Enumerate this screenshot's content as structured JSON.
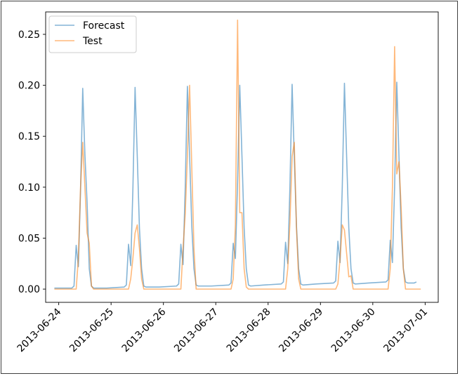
{
  "chart_data": {
    "type": "line",
    "xlabel": "",
    "ylabel": "",
    "title": "",
    "xlim": [
      "2013-06-23T18:00",
      "2013-07-01T06:00"
    ],
    "ylim": [
      -0.013,
      0.272
    ],
    "x_ticks": [
      "2013-06-24",
      "2013-06-25",
      "2013-06-26",
      "2013-06-27",
      "2013-06-28",
      "2013-06-29",
      "2013-06-30",
      "2013-07-01"
    ],
    "y_ticks": [
      "0.00",
      "0.05",
      "0.10",
      "0.15",
      "0.20",
      "0.25"
    ],
    "y_tick_values": [
      0,
      0.05,
      0.1,
      0.15,
      0.2,
      0.25
    ],
    "legend": {
      "placement": "top-left"
    },
    "grid": false,
    "series": [
      {
        "name": "Forecast",
        "color": "#1f77b4",
        "points": [
          [
            "2013-06-23T22:00",
            0.001
          ],
          [
            "2013-06-24T06:00",
            0.001
          ],
          [
            "2013-06-24T07:00",
            0.003
          ],
          [
            "2013-06-24T08:00",
            0.043
          ],
          [
            "2013-06-24T09:00",
            0.022
          ],
          [
            "2013-06-24T10:00",
            0.096
          ],
          [
            "2013-06-24T11:00",
            0.197
          ],
          [
            "2013-06-24T12:00",
            0.132
          ],
          [
            "2013-06-24T13:00",
            0.085
          ],
          [
            "2013-06-24T14:00",
            0.02
          ],
          [
            "2013-06-24T15:00",
            0.003
          ],
          [
            "2013-06-24T16:00",
            0.001
          ],
          [
            "2013-06-24T22:00",
            0.001
          ],
          [
            "2013-06-25T06:00",
            0.002
          ],
          [
            "2013-06-25T07:00",
            0.004
          ],
          [
            "2013-06-25T08:00",
            0.044
          ],
          [
            "2013-06-25T09:00",
            0.023
          ],
          [
            "2013-06-25T10:00",
            0.098
          ],
          [
            "2013-06-25T11:00",
            0.198
          ],
          [
            "2013-06-25T12:00",
            0.131
          ],
          [
            "2013-06-25T13:00",
            0.06
          ],
          [
            "2013-06-25T14:00",
            0.02
          ],
          [
            "2013-06-25T15:00",
            0.003
          ],
          [
            "2013-06-25T16:00",
            0.002
          ],
          [
            "2013-06-25T22:00",
            0.002
          ],
          [
            "2013-06-26T06:00",
            0.003
          ],
          [
            "2013-06-26T07:00",
            0.005
          ],
          [
            "2013-06-26T08:00",
            0.044
          ],
          [
            "2013-06-26T09:00",
            0.024
          ],
          [
            "2013-06-26T10:00",
            0.1
          ],
          [
            "2013-06-26T11:00",
            0.199
          ],
          [
            "2013-06-26T12:00",
            0.131
          ],
          [
            "2013-06-26T13:00",
            0.062
          ],
          [
            "2013-06-26T14:00",
            0.02
          ],
          [
            "2013-06-26T15:00",
            0.004
          ],
          [
            "2013-06-26T16:00",
            0.003
          ],
          [
            "2013-06-26T22:00",
            0.003
          ],
          [
            "2013-06-27T06:00",
            0.004
          ],
          [
            "2013-06-27T07:00",
            0.006
          ],
          [
            "2013-06-27T08:00",
            0.045
          ],
          [
            "2013-06-27T09:00",
            0.03
          ],
          [
            "2013-06-27T10:00",
            0.105
          ],
          [
            "2013-06-27T11:00",
            0.2
          ],
          [
            "2013-06-27T12:00",
            0.131
          ],
          [
            "2013-06-27T13:00",
            0.06
          ],
          [
            "2013-06-27T14:00",
            0.02
          ],
          [
            "2013-06-27T15:00",
            0.004
          ],
          [
            "2013-06-27T16:00",
            0.003
          ],
          [
            "2013-06-27T22:00",
            0.004
          ],
          [
            "2013-06-28T06:00",
            0.005
          ],
          [
            "2013-06-28T07:00",
            0.007
          ],
          [
            "2013-06-28T08:00",
            0.046
          ],
          [
            "2013-06-28T09:00",
            0.025
          ],
          [
            "2013-06-28T10:00",
            0.1
          ],
          [
            "2013-06-28T11:00",
            0.201
          ],
          [
            "2013-06-28T12:00",
            0.13
          ],
          [
            "2013-06-28T13:00",
            0.062
          ],
          [
            "2013-06-28T14:00",
            0.02
          ],
          [
            "2013-06-28T15:00",
            0.005
          ],
          [
            "2013-06-28T16:00",
            0.004
          ],
          [
            "2013-06-28T22:00",
            0.005
          ],
          [
            "2013-06-29T06:00",
            0.006
          ],
          [
            "2013-06-29T07:00",
            0.008
          ],
          [
            "2013-06-29T08:00",
            0.047
          ],
          [
            "2013-06-29T09:00",
            0.026
          ],
          [
            "2013-06-29T10:00",
            0.1
          ],
          [
            "2013-06-29T11:00",
            0.202
          ],
          [
            "2013-06-29T12:00",
            0.13
          ],
          [
            "2013-06-29T13:00",
            0.06
          ],
          [
            "2013-06-29T14:00",
            0.02
          ],
          [
            "2013-06-29T15:00",
            0.006
          ],
          [
            "2013-06-29T16:00",
            0.005
          ],
          [
            "2013-06-29T22:00",
            0.006
          ],
          [
            "2013-06-30T06:00",
            0.007
          ],
          [
            "2013-06-30T07:00",
            0.009
          ],
          [
            "2013-06-30T08:00",
            0.048
          ],
          [
            "2013-06-30T09:00",
            0.026
          ],
          [
            "2013-06-30T10:00",
            0.1
          ],
          [
            "2013-06-30T11:00",
            0.203
          ],
          [
            "2013-06-30T12:00",
            0.13
          ],
          [
            "2013-06-30T13:00",
            0.06
          ],
          [
            "2013-06-30T14:00",
            0.02
          ],
          [
            "2013-06-30T15:00",
            0.007
          ],
          [
            "2013-06-30T16:00",
            0.006
          ],
          [
            "2013-06-30T19:00",
            0.006
          ],
          [
            "2013-06-30T20:00",
            0.007
          ]
        ]
      },
      {
        "name": "Test",
        "color": "#ff7f0e",
        "points": [
          [
            "2013-06-23T22:00",
            0.0
          ],
          [
            "2013-06-24T08:00",
            0.0
          ],
          [
            "2013-06-24T09:00",
            0.03
          ],
          [
            "2013-06-24T10:00",
            0.1
          ],
          [
            "2013-06-24T11:00",
            0.144
          ],
          [
            "2013-06-24T12:00",
            0.1
          ],
          [
            "2013-06-24T13:00",
            0.055
          ],
          [
            "2013-06-24T14:00",
            0.045
          ],
          [
            "2013-06-24T15:00",
            0.003
          ],
          [
            "2013-06-24T16:00",
            0.0
          ],
          [
            "2013-06-25T08:00",
            0.0
          ],
          [
            "2013-06-25T09:00",
            0.01
          ],
          [
            "2013-06-25T10:00",
            0.03
          ],
          [
            "2013-06-25T11:00",
            0.055
          ],
          [
            "2013-06-25T12:00",
            0.063
          ],
          [
            "2013-06-25T13:00",
            0.04
          ],
          [
            "2013-06-25T14:00",
            0.01
          ],
          [
            "2013-06-25T15:00",
            0.0
          ],
          [
            "2013-06-26T08:00",
            0.0
          ],
          [
            "2013-06-26T09:00",
            0.04
          ],
          [
            "2013-06-26T10:00",
            0.074
          ],
          [
            "2013-06-26T11:00",
            0.131
          ],
          [
            "2013-06-26T12:00",
            0.2
          ],
          [
            "2013-06-26T13:00",
            0.12
          ],
          [
            "2013-06-26T14:00",
            0.04
          ],
          [
            "2013-06-26T15:00",
            0.0
          ],
          [
            "2013-06-27T07:00",
            0.0
          ],
          [
            "2013-06-27T08:00",
            0.01
          ],
          [
            "2013-06-27T09:00",
            0.063
          ],
          [
            "2013-06-27T10:00",
            0.264
          ],
          [
            "2013-06-27T11:00",
            0.075
          ],
          [
            "2013-06-27T12:00",
            0.075
          ],
          [
            "2013-06-27T13:00",
            0.02
          ],
          [
            "2013-06-27T14:00",
            0.002
          ],
          [
            "2013-06-27T15:00",
            0.0
          ],
          [
            "2013-06-28T08:00",
            0.0
          ],
          [
            "2013-06-28T09:00",
            0.02
          ],
          [
            "2013-06-28T10:00",
            0.065
          ],
          [
            "2013-06-28T11:00",
            0.13
          ],
          [
            "2013-06-28T12:00",
            0.144
          ],
          [
            "2013-06-28T13:00",
            0.06
          ],
          [
            "2013-06-28T14:00",
            0.01
          ],
          [
            "2013-06-28T15:00",
            0.0
          ],
          [
            "2013-06-29T07:00",
            0.0
          ],
          [
            "2013-06-29T08:00",
            0.005
          ],
          [
            "2013-06-29T09:00",
            0.03
          ],
          [
            "2013-06-29T10:00",
            0.063
          ],
          [
            "2013-06-29T11:00",
            0.058
          ],
          [
            "2013-06-29T12:00",
            0.035
          ],
          [
            "2013-06-29T13:00",
            0.012
          ],
          [
            "2013-06-29T14:00",
            0.013
          ],
          [
            "2013-06-29T15:00",
            0.0
          ],
          [
            "2013-06-30T07:00",
            0.0
          ],
          [
            "2013-06-30T08:00",
            0.02
          ],
          [
            "2013-06-30T09:00",
            0.1
          ],
          [
            "2013-06-30T10:00",
            0.238
          ],
          [
            "2013-06-30T11:00",
            0.113
          ],
          [
            "2013-06-30T12:00",
            0.125
          ],
          [
            "2013-06-30T13:00",
            0.08
          ],
          [
            "2013-06-30T14:00",
            0.02
          ],
          [
            "2013-06-30T15:00",
            0.0
          ],
          [
            "2013-06-30T22:00",
            0.0
          ]
        ]
      }
    ]
  }
}
